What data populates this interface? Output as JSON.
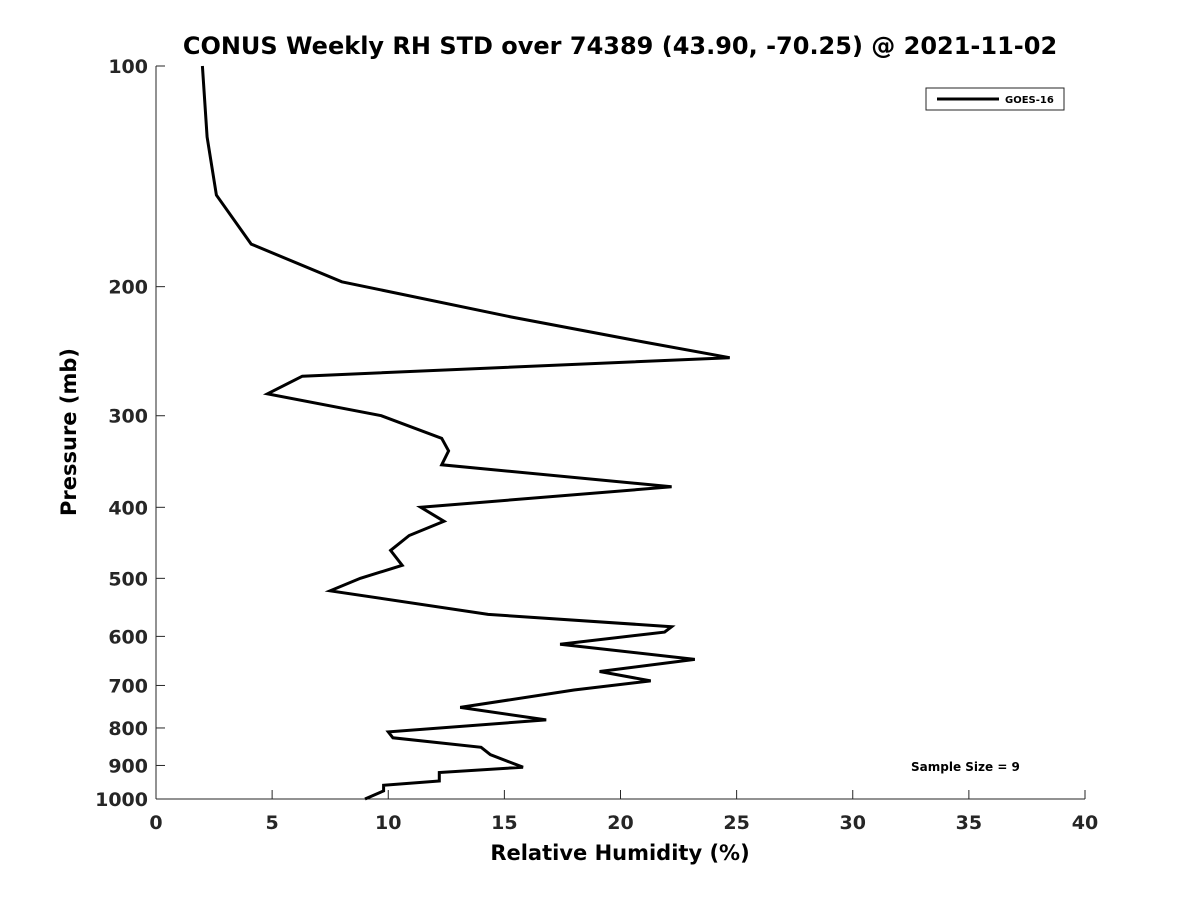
{
  "chart_data": {
    "type": "line",
    "title": "CONUS Weekly RH STD over 74389 (43.90, -70.25) @ 2021-11-02",
    "xlabel": "Relative Humidity (%)",
    "ylabel": "Pressure (mb)",
    "xlim": [
      0,
      40
    ],
    "ylim": [
      100,
      1000
    ],
    "y_scale": "log",
    "y_reversed": true,
    "grid": false,
    "x_ticks": [
      "0",
      "5",
      "10",
      "15",
      "20",
      "25",
      "30",
      "35",
      "40"
    ],
    "y_ticks": [
      "100",
      "200",
      "300",
      "400",
      "500",
      "600",
      "700",
      "800",
      "900",
      "1000"
    ],
    "legend": {
      "position": "top-right",
      "entries": [
        "GOES-16"
      ]
    },
    "annotation": "Sample Size = 9",
    "series": [
      {
        "name": "GOES-16",
        "color": "#000000",
        "points": [
          [
            2.0,
            100
          ],
          [
            2.2,
            125
          ],
          [
            2.6,
            150
          ],
          [
            4.1,
            175
          ],
          [
            8.0,
            197
          ],
          [
            15.3,
            220
          ],
          [
            21.0,
            238
          ],
          [
            24.7,
            250
          ],
          [
            6.3,
            265
          ],
          [
            4.8,
            280
          ],
          [
            9.7,
            300
          ],
          [
            12.3,
            322
          ],
          [
            12.6,
            335
          ],
          [
            12.3,
            350
          ],
          [
            22.2,
            375
          ],
          [
            11.4,
            400
          ],
          [
            12.4,
            418
          ],
          [
            10.9,
            437
          ],
          [
            10.1,
            458
          ],
          [
            10.6,
            480
          ],
          [
            8.8,
            500
          ],
          [
            7.5,
            520
          ],
          [
            14.3,
            560
          ],
          [
            22.2,
            582
          ],
          [
            21.9,
            592
          ],
          [
            17.4,
            615
          ],
          [
            23.2,
            645
          ],
          [
            19.1,
            670
          ],
          [
            21.3,
            690
          ],
          [
            18.0,
            710
          ],
          [
            13.1,
            750
          ],
          [
            16.8,
            780
          ],
          [
            10.0,
            810
          ],
          [
            10.2,
            825
          ],
          [
            14.0,
            850
          ],
          [
            14.4,
            870
          ],
          [
            15.8,
            905
          ],
          [
            12.2,
            920
          ],
          [
            12.2,
            945
          ],
          [
            9.8,
            958
          ],
          [
            9.8,
            975
          ],
          [
            9.0,
            1000
          ]
        ]
      }
    ]
  }
}
